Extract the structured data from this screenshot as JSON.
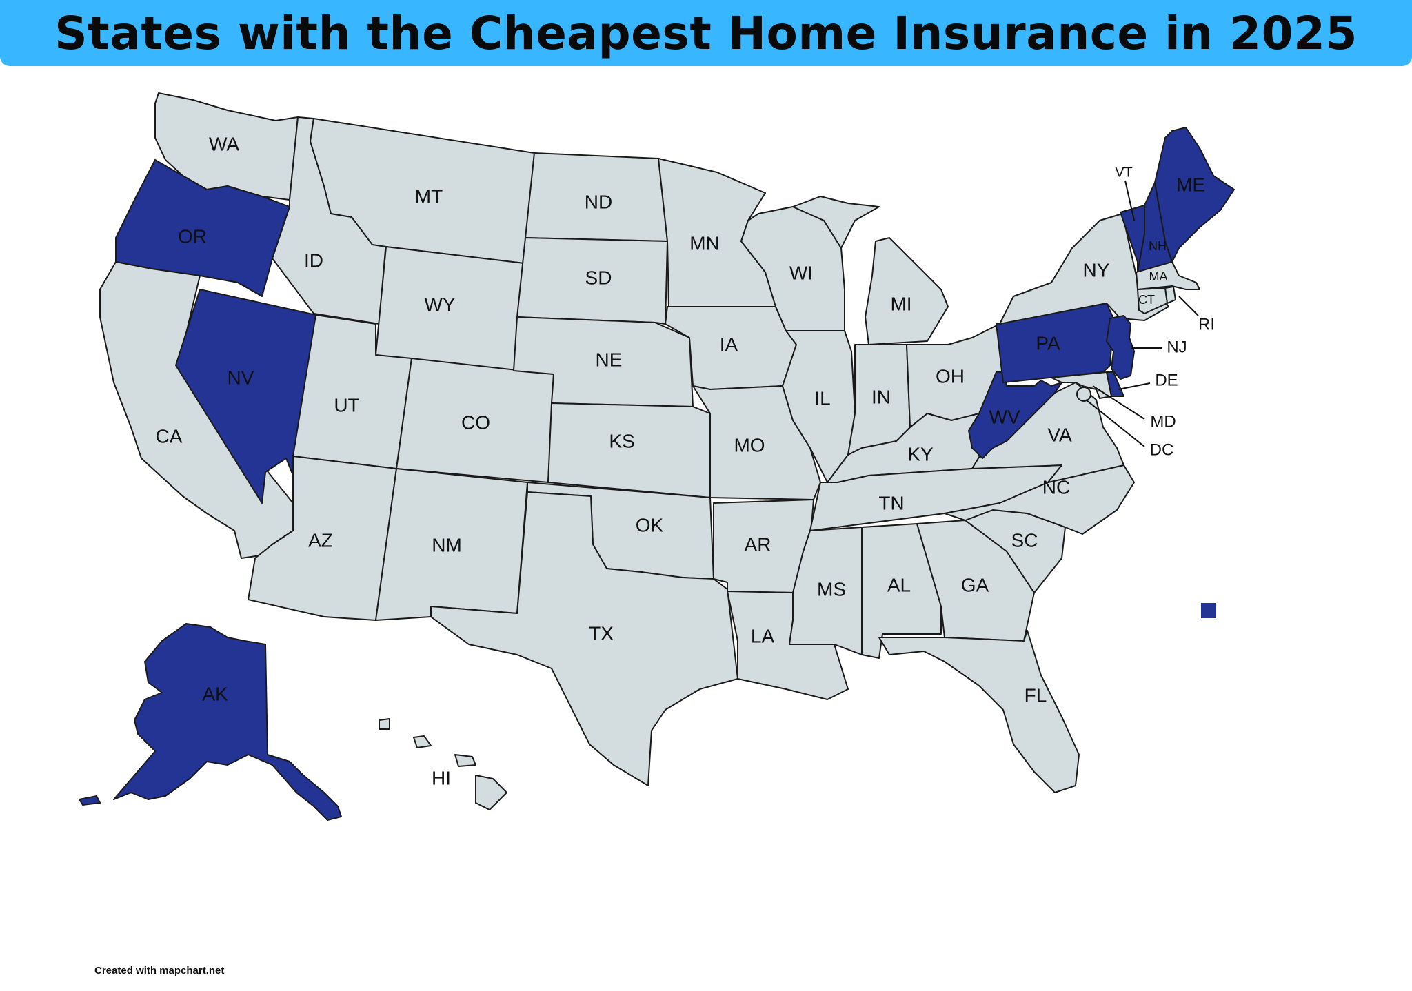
{
  "title": "States with the Cheapest Home Insurance in 2025",
  "credit": "Created with mapchart.net",
  "colors": {
    "title_bar": "#38b6ff",
    "highlighted": "#233494",
    "default": "#d3dcdf",
    "outline": "#1a1a1a"
  },
  "highlighted_states": [
    "OR",
    "NV",
    "AK",
    "WV",
    "PA",
    "NJ",
    "DE",
    "VT",
    "NH",
    "ME"
  ],
  "legend": {
    "marker": "legend-swatch",
    "label": ""
  },
  "states": {
    "WA": "WA",
    "OR": "OR",
    "CA": "CA",
    "ID": "ID",
    "NV": "NV",
    "MT": "MT",
    "WY": "WY",
    "UT": "UT",
    "AZ": "AZ",
    "CO": "CO",
    "NM": "NM",
    "ND": "ND",
    "SD": "SD",
    "NE": "NE",
    "KS": "KS",
    "OK": "OK",
    "TX": "TX",
    "MN": "MN",
    "IA": "IA",
    "MO": "MO",
    "AR": "AR",
    "LA": "LA",
    "WI": "WI",
    "IL": "IL",
    "MI": "MI",
    "IN": "IN",
    "OH": "OH",
    "KY": "KY",
    "TN": "TN",
    "MS": "MS",
    "AL": "AL",
    "GA": "GA",
    "FL": "FL",
    "SC": "SC",
    "NC": "NC",
    "VA": "VA",
    "WV": "WV",
    "PA": "PA",
    "NY": "NY",
    "VT": "VT",
    "NH": "NH",
    "ME": "ME",
    "MA": "MA",
    "CT": "CT",
    "RI": "RI",
    "NJ": "NJ",
    "DE": "DE",
    "MD": "MD",
    "DC": "DC",
    "AK": "AK",
    "HI": "HI"
  }
}
